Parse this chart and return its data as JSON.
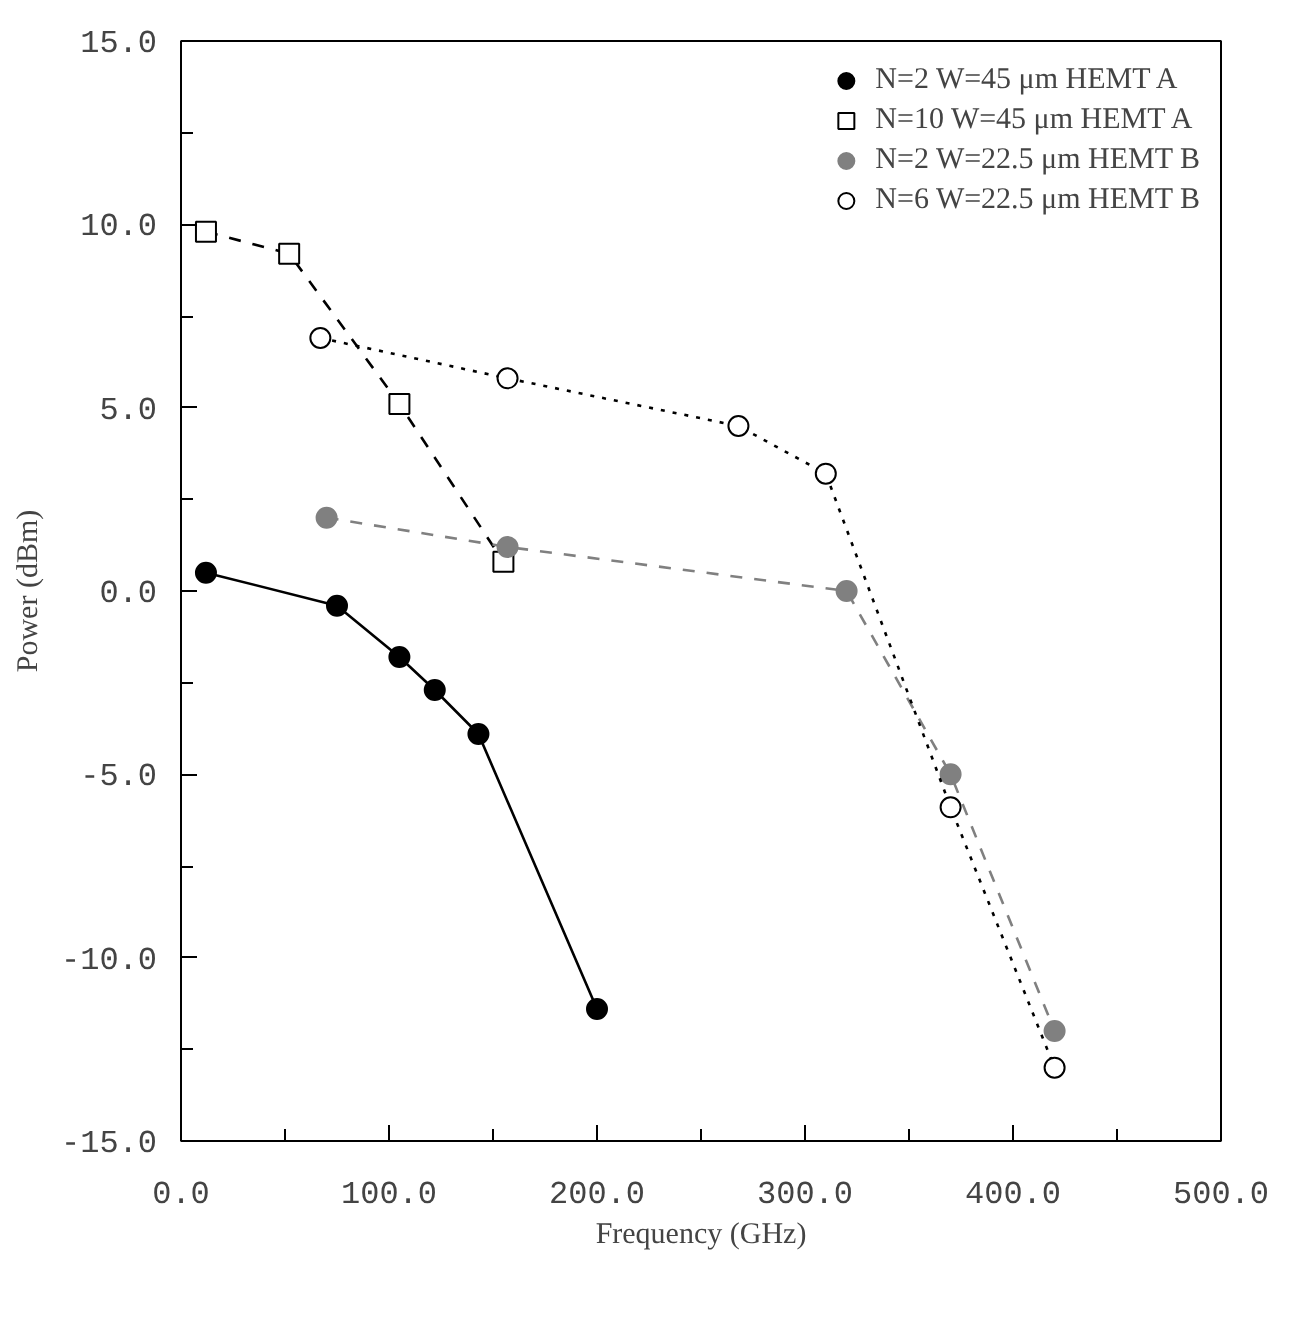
{
  "chart_data": {
    "type": "line",
    "xlabel": "Frequency (GHz)",
    "ylabel": "Power (dBm)",
    "xlim": [
      0,
      500
    ],
    "ylim": [
      -15,
      15
    ],
    "xticks": [
      {
        "value": 0,
        "label": "0.0"
      },
      {
        "value": 50,
        "label": null
      },
      {
        "value": 100,
        "label": "100.0"
      },
      {
        "value": 150,
        "label": null
      },
      {
        "value": 200,
        "label": "200.0"
      },
      {
        "value": 250,
        "label": null
      },
      {
        "value": 300,
        "label": "300.0"
      },
      {
        "value": 350,
        "label": null
      },
      {
        "value": 400,
        "label": "400.0"
      },
      {
        "value": 450,
        "label": null
      },
      {
        "value": 500,
        "label": "500.0"
      }
    ],
    "yticks": [
      {
        "value": -15,
        "label": "-15.0"
      },
      {
        "value": -12.5,
        "label": null
      },
      {
        "value": -10,
        "label": "-10.0"
      },
      {
        "value": -7.5,
        "label": null
      },
      {
        "value": -5,
        "label": "-5.0"
      },
      {
        "value": -2.5,
        "label": null
      },
      {
        "value": 0,
        "label": "0.0"
      },
      {
        "value": 2.5,
        "label": null
      },
      {
        "value": 5,
        "label": "5.0"
      },
      {
        "value": 7.5,
        "label": null
      },
      {
        "value": 10,
        "label": "10.0"
      },
      {
        "value": 12.5,
        "label": null
      },
      {
        "value": 15,
        "label": "15.0"
      }
    ],
    "grid": false,
    "legend": "top right",
    "series": [
      {
        "name": "N=2 W=45 μm HEMT A",
        "color": "#000000",
        "colors": [
          "#000000",
          "#000000",
          "#000000",
          "#000000",
          "#000000",
          "#000000"
        ],
        "marker": "circle",
        "line_style": "solid",
        "x": [
          12,
          75,
          105,
          122,
          143,
          200
        ],
        "values": [
          0.5,
          -0.4,
          -1.8,
          -2.7,
          -3.9,
          -11.4
        ]
      },
      {
        "name": "N=10 W=45 μm HEMT A",
        "color": "#000000",
        "colors": [
          "#ffffff",
          "#ffffff",
          "#ffffff",
          "#ffffff"
        ],
        "marker": "square",
        "line_style": "dashed",
        "x": [
          12,
          52,
          105,
          155
        ],
        "values": [
          9.8,
          9.2,
          5.1,
          0.8
        ]
      },
      {
        "name": "N=2 W=22.5 μm HEMT B",
        "color": "#808080",
        "colors": [
          "#808080",
          "#808080",
          "#808080",
          "#808080",
          "#808080"
        ],
        "marker": "circle",
        "line_style": "dashed",
        "x": [
          70,
          157,
          320,
          370,
          420
        ],
        "values": [
          2.0,
          1.2,
          0.0,
          -5.0,
          -12.0
        ]
      },
      {
        "name": "N=6 W=22.5 μm HEMT B",
        "color": "#000000",
        "colors": [
          "#ffffff",
          "#ffffff",
          "#ffffff",
          "#ffffff",
          "#ffffff",
          "#ffffff"
        ],
        "marker": "circle",
        "line_style": "dotted",
        "x": [
          67,
          157,
          268,
          310,
          370,
          420
        ],
        "values": [
          6.9,
          5.8,
          4.5,
          3.2,
          -5.9,
          -13.0
        ]
      }
    ]
  }
}
